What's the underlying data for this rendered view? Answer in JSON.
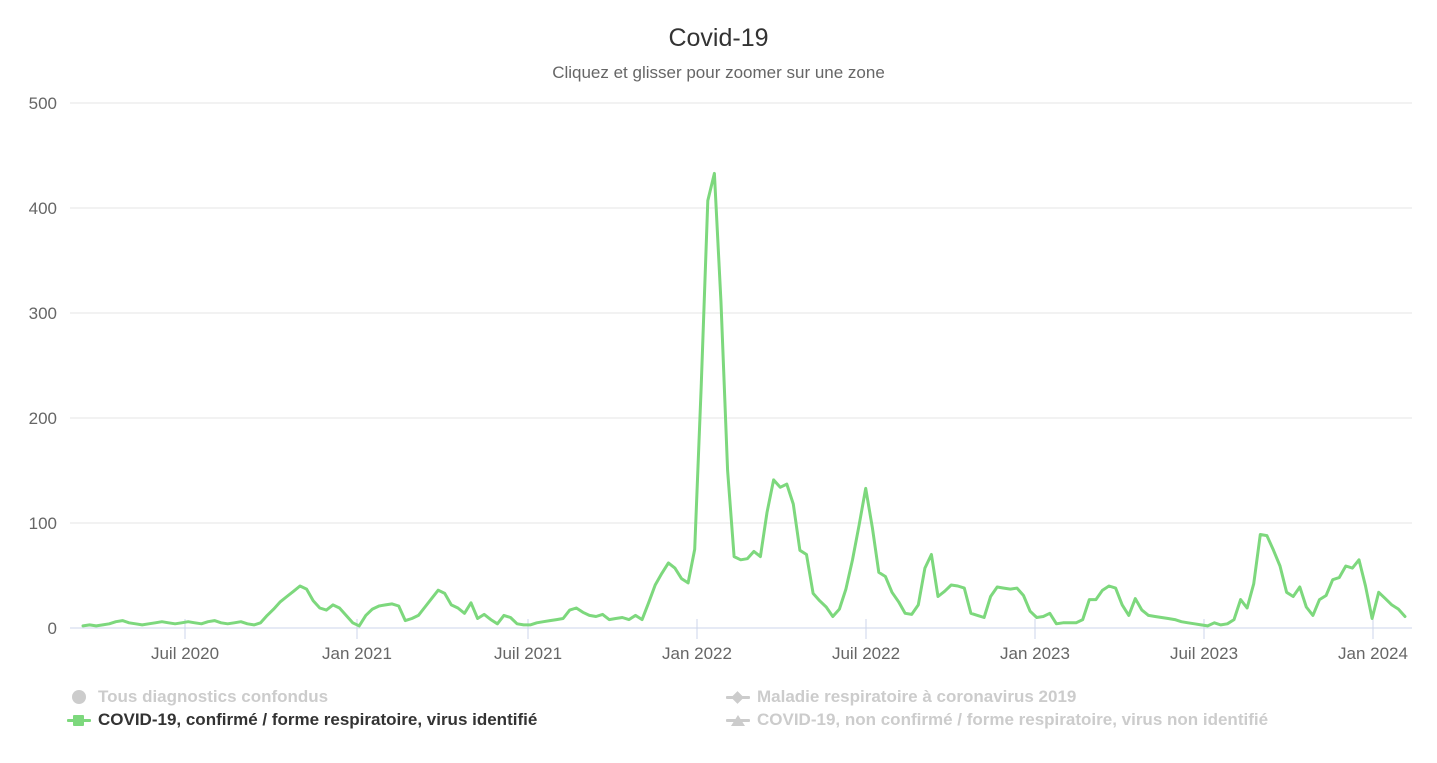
{
  "header": {
    "title": "Covid-19",
    "subtitle": "Cliquez et glisser pour zoomer sur une zone"
  },
  "colors": {
    "series_green": "#7dd87d",
    "disabled_grey": "#cccccc",
    "active_text": "#333333",
    "grid_line": "#e6e6e6",
    "axis_line": "#ccd6eb",
    "label_grey": "#666666"
  },
  "y_axis": {
    "tick_labels": [
      "0",
      "100",
      "200",
      "300",
      "400",
      "500"
    ]
  },
  "x_axis": {
    "tick_labels": [
      "Juil 2020",
      "Jan 2021",
      "Juil 2021",
      "Jan 2022",
      "Juil 2022",
      "Jan 2023",
      "Juil 2023",
      "Jan 2024"
    ]
  },
  "legend": {
    "items": [
      {
        "label": "Tous diagnostics confondus",
        "marker": "circle",
        "color": "#cccccc",
        "active": false
      },
      {
        "label": "COVID-19, confirmé / forme respiratoire, virus identifié",
        "marker": "square",
        "color": "#7dd87d",
        "active": true
      },
      {
        "label": "Maladie respiratoire à coronavirus 2019",
        "marker": "diamond",
        "color": "#cccccc",
        "active": false
      },
      {
        "label": "COVID-19, non confirmé / forme respiratoire, virus non identifié",
        "marker": "triangle",
        "color": "#cccccc",
        "active": false
      }
    ]
  },
  "chart_data": {
    "type": "line",
    "title": "Covid-19",
    "subtitle": "Cliquez et glisser pour zoomer sur une zone",
    "ylabel": "",
    "xlabel": "",
    "ylim": [
      0,
      500
    ],
    "yticks": [
      0,
      100,
      200,
      300,
      400,
      500
    ],
    "xticks": [
      "Juil 2020",
      "Jan 2021",
      "Juil 2021",
      "Jan 2022",
      "Juil 2022",
      "Jan 2023",
      "Juil 2023",
      "Jan 2024"
    ],
    "x_unit": "week",
    "grid": true,
    "legend_position": "bottom",
    "series": [
      {
        "name": "COVID-19, confirmé / forme respiratoire, virus identifié",
        "color": "#7dd87d",
        "visible": true,
        "values": [
          2,
          3,
          2,
          3,
          4,
          6,
          7,
          5,
          4,
          3,
          4,
          5,
          6,
          5,
          4,
          5,
          6,
          5,
          4,
          6,
          7,
          5,
          4,
          5,
          6,
          4,
          3,
          5,
          12,
          18,
          25,
          30,
          35,
          40,
          37,
          26,
          19,
          17,
          22,
          19,
          12,
          5,
          2,
          12,
          18,
          21,
          22,
          23,
          21,
          7,
          9,
          12,
          20,
          28,
          36,
          33,
          22,
          19,
          14,
          24,
          9,
          13,
          8,
          4,
          12,
          10,
          4,
          3,
          3,
          5,
          6,
          7,
          8,
          9,
          17,
          19,
          15,
          12,
          11,
          13,
          8,
          9,
          10,
          8,
          12,
          8,
          24,
          41,
          52,
          62,
          57,
          47,
          43,
          75,
          230,
          407,
          433,
          310,
          150,
          68,
          65,
          66,
          73,
          68,
          110,
          141,
          134,
          137,
          118,
          74,
          70,
          33,
          26,
          20,
          11,
          18,
          37,
          65,
          98,
          133,
          96,
          53,
          49,
          34,
          25,
          14,
          13,
          22,
          57,
          70,
          30,
          35,
          41,
          40,
          38,
          14,
          12,
          10,
          30,
          39,
          38,
          37,
          38,
          31,
          16,
          10,
          11,
          14,
          4,
          5,
          5,
          5,
          8,
          27,
          27,
          36,
          40,
          38,
          22,
          12,
          28,
          17,
          12,
          11,
          10,
          9,
          8,
          6,
          5,
          4,
          3,
          2,
          5,
          3,
          4,
          8,
          27,
          19,
          42,
          89,
          88,
          74,
          59,
          34,
          30,
          39,
          20,
          12,
          27,
          31,
          46,
          48,
          59,
          57,
          65,
          40,
          9,
          34,
          28,
          22,
          18,
          11
        ]
      },
      {
        "name": "Tous diagnostics confondus",
        "visible": false
      },
      {
        "name": "Maladie respiratoire à coronavirus 2019",
        "visible": false
      },
      {
        "name": "COVID-19, non confirmé / forme respiratoire, virus non identifié",
        "visible": false
      }
    ]
  }
}
